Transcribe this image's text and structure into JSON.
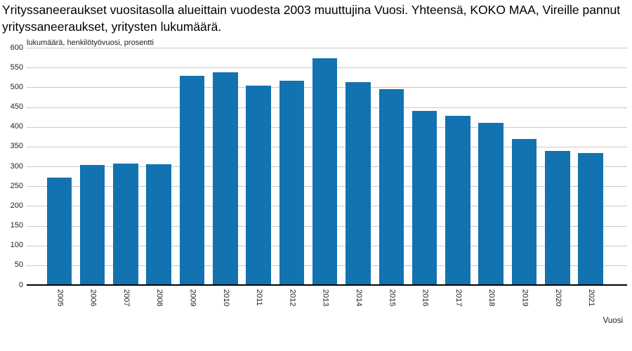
{
  "chart_data": {
    "type": "bar",
    "title": "Yrityssaneeraukset vuositasolla alueittain vuodesta 2003 muuttujina Vuosi. Yhteensä, KOKO MAA, Vireille pannut yrityssaneeraukset, yritysten lukumäärä.",
    "unit_label": "lukumäärä, henkilötyövuosi, prosentti",
    "xlabel": "Vuosi",
    "ylabel": "",
    "categories": [
      "2005",
      "2006",
      "2007",
      "2008",
      "2009",
      "2010",
      "2011",
      "2012",
      "2013",
      "2014",
      "2015",
      "2016",
      "2017",
      "2018",
      "2019",
      "2020",
      "2021"
    ],
    "values": [
      269,
      302,
      306,
      303,
      528,
      537,
      502,
      515,
      571,
      512,
      494,
      439,
      426,
      408,
      368,
      338,
      332
    ],
    "ylim": [
      0,
      600
    ],
    "ytick_step": 50,
    "grid": true,
    "legend_position": "none",
    "colors": {
      "bar": "#1273B0",
      "grid": "#c9c9c9",
      "axis": "#000000",
      "text": "#222222",
      "title": "#000000"
    }
  }
}
